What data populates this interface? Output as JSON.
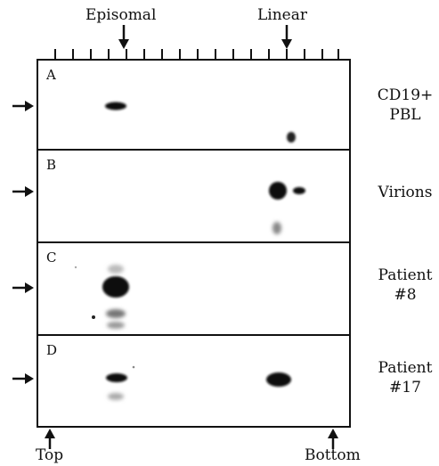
{
  "header": {
    "episomal_label": "Episomal",
    "linear_label": "Linear"
  },
  "panels": [
    {
      "letter": "A",
      "label_lines": [
        "CD19+",
        "PBL"
      ]
    },
    {
      "letter": "B",
      "label_lines": [
        "Virions"
      ]
    },
    {
      "letter": "C",
      "label_lines": [
        "Patient",
        "#8"
      ]
    },
    {
      "letter": "D",
      "label_lines": [
        "Patient",
        "#17"
      ]
    }
  ],
  "footer": {
    "top_label": "Top",
    "bottom_label": "Bottom"
  },
  "colors": {
    "band": "#111111",
    "frame": "#111111",
    "background": "#ffffff"
  },
  "icons": {
    "row_marker": "right-arrow-icon",
    "column_marker": "down-arrow-icon",
    "end_marker": "up-arrow-icon"
  }
}
